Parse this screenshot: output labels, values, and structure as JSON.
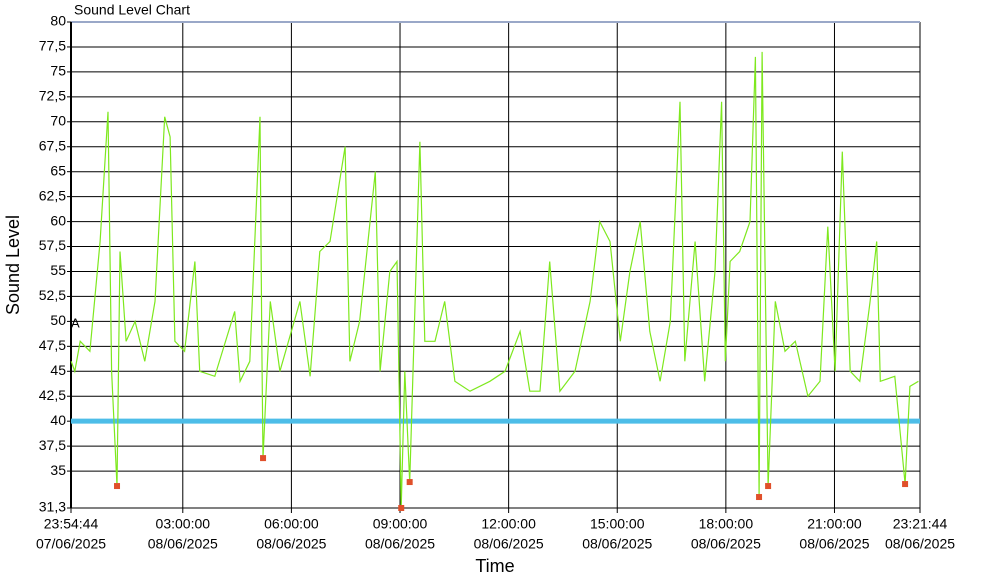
{
  "chart_data": {
    "type": "line",
    "title": "Sound Level Chart",
    "xlabel": "Time",
    "ylabel": "Sound Level",
    "annotation": "A",
    "xlim": [
      "2025-06-07T23:54:44",
      "2025-06-08T23:21:44"
    ],
    "xticks": [
      {
        "value": "2025-06-07T23:54:44",
        "label": [
          "23:54:44",
          "07/06/2025"
        ]
      },
      {
        "value": "2025-06-08T03:00:00",
        "label": [
          "03:00:00",
          "08/06/2025"
        ]
      },
      {
        "value": "2025-06-08T06:00:00",
        "label": [
          "06:00:00",
          "08/06/2025"
        ]
      },
      {
        "value": "2025-06-08T09:00:00",
        "label": [
          "09:00:00",
          "08/06/2025"
        ]
      },
      {
        "value": "2025-06-08T12:00:00",
        "label": [
          "12:00:00",
          "08/06/2025"
        ]
      },
      {
        "value": "2025-06-08T15:00:00",
        "label": [
          "15:00:00",
          "08/06/2025"
        ]
      },
      {
        "value": "2025-06-08T18:00:00",
        "label": [
          "18:00:00",
          "08/06/2025"
        ]
      },
      {
        "value": "2025-06-08T21:00:00",
        "label": [
          "21:00:00",
          "08/06/2025"
        ]
      },
      {
        "value": "2025-06-08T23:21:44",
        "label": [
          "23:21:44",
          "08/06/2025"
        ]
      }
    ],
    "ylim": [
      31.3,
      80
    ],
    "yticks": [
      {
        "value": 31.3,
        "label": "31,3"
      },
      35,
      {
        "value": 37.5,
        "label": "37,5"
      },
      40,
      {
        "value": 42.5,
        "label": "42,5"
      },
      45,
      {
        "value": 47.5,
        "label": "47,5"
      },
      50,
      {
        "value": 52.5,
        "label": "52,5"
      },
      55,
      {
        "value": 57.5,
        "label": "57,5"
      },
      60,
      {
        "value": 62.5,
        "label": "62,5"
      },
      65,
      {
        "value": 67.5,
        "label": "67,5"
      },
      70,
      {
        "value": 72.5,
        "label": "72,5"
      },
      75,
      {
        "value": 77.5,
        "label": "77,5"
      },
      80
    ],
    "grid": true,
    "threshold": {
      "value": 40,
      "color": "#4dbde8"
    },
    "series": [
      {
        "color": "#7ee81e",
        "x": [
          "2025-06-07T23:55",
          "2025-06-08T00:01",
          "2025-06-08T00:10",
          "2025-06-08T00:26",
          "2025-06-08T00:43",
          "2025-06-08T00:56",
          "2025-06-08T01:02",
          "2025-06-08T01:11",
          "2025-06-08T01:16",
          "2025-06-08T01:26",
          "2025-06-08T01:41",
          "2025-06-08T01:57",
          "2025-06-08T02:14",
          "2025-06-08T02:30",
          "2025-06-08T02:39",
          "2025-06-08T02:47",
          "2025-06-08T03:03",
          "2025-06-08T03:20",
          "2025-06-08T03:28",
          "2025-06-08T03:53",
          "2025-06-08T04:26",
          "2025-06-08T04:35",
          "2025-06-08T04:51",
          "2025-06-08T05:08",
          "2025-06-08T05:11",
          "2025-06-08T05:13",
          "2025-06-08T05:25",
          "2025-06-08T05:41",
          "2025-06-08T06:14",
          "2025-06-08T06:31",
          "2025-06-08T06:47",
          "2025-06-08T07:04",
          "2025-06-08T07:29",
          "2025-06-08T07:37",
          "2025-06-08T07:53",
          "2025-06-08T08:19",
          "2025-06-08T08:27",
          "2025-06-08T08:43",
          "2025-06-08T08:55",
          "2025-06-08T09:02",
          "2025-06-08T09:08",
          "2025-06-08T09:16",
          "2025-06-08T09:33",
          "2025-06-08T09:41",
          "2025-06-08T09:58",
          "2025-06-08T10:14",
          "2025-06-08T10:31",
          "2025-06-08T10:56",
          "2025-06-08T11:29",
          "2025-06-08T11:54",
          "2025-06-08T12:19",
          "2025-06-08T12:35",
          "2025-06-08T12:52",
          "2025-06-08T13:08",
          "2025-06-08T13:25",
          "2025-06-08T13:50",
          "2025-06-08T14:15",
          "2025-06-08T14:31",
          "2025-06-08T14:48",
          "2025-06-08T15:05",
          "2025-06-08T15:21",
          "2025-06-08T15:38",
          "2025-06-08T15:54",
          "2025-06-08T16:11",
          "2025-06-08T16:28",
          "2025-06-08T16:44",
          "2025-06-08T16:52",
          "2025-06-08T17:09",
          "2025-06-08T17:25",
          "2025-06-08T17:42",
          "2025-06-08T17:53",
          "2025-06-08T17:59",
          "2025-06-08T18:07",
          "2025-06-08T18:23",
          "2025-06-08T18:40",
          "2025-06-08T18:49",
          "2025-06-08T18:55",
          "2025-06-08T19:00",
          "2025-06-08T19:10",
          "2025-06-08T19:22",
          "2025-06-08T19:38",
          "2025-06-08T19:55",
          "2025-06-08T20:16",
          "2025-06-08T20:36",
          "2025-06-08T20:49",
          "2025-06-08T21:01",
          "2025-06-08T21:13",
          "2025-06-08T21:26",
          "2025-06-08T21:42",
          "2025-06-08T21:59",
          "2025-06-08T22:10",
          "2025-06-08T22:16",
          "2025-06-08T22:40",
          "2025-06-08T22:57",
          "2025-06-08T23:05",
          "2025-06-08T23:19"
        ],
        "values": [
          46,
          45,
          48,
          47,
          58,
          71,
          45,
          33.5,
          57,
          48,
          50,
          46,
          52,
          70.5,
          68.5,
          48,
          47,
          56,
          45,
          44.5,
          51,
          44,
          46,
          70.5,
          48,
          36.3,
          52,
          45,
          52,
          44.5,
          57,
          58,
          67.5,
          46,
          50,
          65,
          45,
          55,
          56,
          31.3,
          45,
          33.9,
          68,
          48,
          48,
          52,
          44,
          43,
          44,
          45,
          49,
          43,
          43,
          56,
          43,
          45,
          52,
          60,
          58,
          48,
          55,
          60,
          49,
          44,
          50,
          72,
          46,
          58,
          44,
          55,
          72,
          46,
          56,
          57,
          60,
          76.5,
          32.4,
          77,
          33.5,
          52,
          47,
          48,
          42.5,
          44,
          59.5,
          45,
          67,
          45,
          44,
          52,
          58,
          44,
          44.5,
          33.7,
          43.5,
          44
        ]
      }
    ],
    "markers": {
      "color": "#e0502a",
      "x": [
        "2025-06-08T01:11",
        "2025-06-08T05:13",
        "2025-06-08T09:02",
        "2025-06-08T09:16",
        "2025-06-08T18:55",
        "2025-06-08T19:10",
        "2025-06-08T22:57"
      ],
      "values": [
        33.5,
        36.3,
        31.3,
        33.9,
        32.4,
        33.5,
        33.7
      ]
    }
  }
}
